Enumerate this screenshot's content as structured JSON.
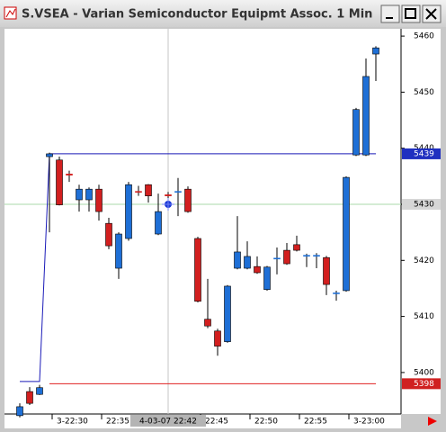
{
  "window_title": "S.VSEA - Varian Semiconductor Equipmt Assoc. 1 Min",
  "chart_data": {
    "type": "candlestick",
    "categories": [
      null,
      null,
      null,
      "3-22:30",
      null,
      null,
      null,
      null,
      "22:35",
      null,
      null,
      null,
      null,
      null,
      null,
      null,
      null,
      null,
      "22:45",
      null,
      null,
      null,
      null,
      "22:50",
      null,
      null,
      null,
      null,
      "22:55",
      null,
      null,
      null,
      null,
      "3-23:00",
      null,
      null,
      null
    ],
    "open": [
      5392.3,
      5396.6,
      5396.1,
      5438.5,
      5437.9,
      5435.4,
      5430.8,
      5430.8,
      5432.7,
      5426.6,
      5418.6,
      5423.9,
      5432.3,
      5433.5,
      5424.7,
      5431.7,
      5432.3,
      5432.7,
      5423.9,
      5409.5,
      5407.4,
      5405.5,
      5418.6,
      5418.6,
      5418.9,
      5414.8,
      5420.4,
      5421.8,
      5422.8,
      5420.9,
      5420.9,
      5420.5,
      5414.2,
      5414.6,
      5438.8,
      5438.8,
      5456.8
    ],
    "high": [
      5394.5,
      5397.4,
      5397.8,
      5439.2,
      5438.5,
      5436,
      5433.5,
      5433,
      5433.5,
      5427.6,
      5425,
      5434,
      5433.3,
      5433.6,
      5431.9,
      5432.2,
      5434.7,
      5433.2,
      5424.2,
      5416.7,
      5407.8,
      5415.6,
      5427.9,
      5423.4,
      5420.7,
      5419,
      5422.3,
      5423.1,
      5424.4,
      5421.2,
      5421.3,
      5420.8,
      5414.6,
      5435,
      5447.2,
      5456,
      5458.2
    ],
    "low": [
      5392,
      5394.2,
      5396,
      5425,
      5429.8,
      5434,
      5428.7,
      5428.7,
      5427.1,
      5422,
      5416.7,
      5423.5,
      5431.5,
      5430.3,
      5424.5,
      5430.6,
      5427.9,
      5428.5,
      5412.5,
      5407.9,
      5403,
      5405.3,
      5418.4,
      5418.4,
      5417.6,
      5414.6,
      5417.5,
      5419.2,
      5421.6,
      5418.8,
      5418.6,
      5413.8,
      5412.8,
      5414.4,
      5438.6,
      5438.6,
      5452
    ],
    "close": [
      5393.9,
      5394.5,
      5397.3,
      5439,
      5429.9,
      5435.2,
      5432.7,
      5432.7,
      5428.7,
      5422.6,
      5424.7,
      5433.5,
      5432.2,
      5431.5,
      5428.7,
      5431.5,
      5432.3,
      5428.7,
      5412.7,
      5408.3,
      5404.7,
      5415.4,
      5421.5,
      5420.7,
      5417.8,
      5418.8,
      5420.4,
      5419.4,
      5421.8,
      5420.9,
      5420.9,
      5415.7,
      5414.2,
      5434.8,
      5446.9,
      5452.8,
      5457.9
    ],
    "up_color": "#1e6fd6",
    "down_color": "#d21f1f",
    "lines": [
      {
        "color": "#1a1ab8",
        "values": [
          5398.4,
          5398.4,
          5398.4,
          5439,
          5439,
          5439,
          5439,
          5439,
          5439,
          5439,
          5439,
          5439,
          5439,
          5439,
          5439,
          5439,
          5439,
          5439,
          5439,
          5439,
          5439,
          5439,
          5439,
          5439,
          5439,
          5439,
          5439,
          5439,
          5439,
          5439,
          5439,
          5439,
          5439,
          5439,
          5439,
          5439,
          5439
        ]
      },
      {
        "color": "#e02020",
        "values": [
          null,
          null,
          null,
          5398,
          5398,
          5398,
          5398,
          5398,
          5398,
          5398,
          5398,
          5398,
          5398,
          5398,
          5398,
          5398,
          5398,
          5398,
          5398,
          5398,
          5398,
          5398,
          5398,
          5398,
          5398,
          5398,
          5398,
          5398,
          5398,
          5398,
          5398,
          5398,
          5398,
          5398,
          5398,
          5398,
          5398
        ]
      }
    ],
    "price_markers": [
      {
        "value": 5439,
        "color": "#2030c0"
      },
      {
        "value": 5398,
        "color": "#d02020"
      }
    ],
    "crosshair": {
      "index": 15,
      "value": 5430,
      "label": "4-03-07 22:42"
    },
    "ylim": [
      5392.6,
      5461.3
    ],
    "yticks": [
      5400,
      5410,
      5420,
      5430,
      5440,
      5450,
      5460
    ]
  }
}
